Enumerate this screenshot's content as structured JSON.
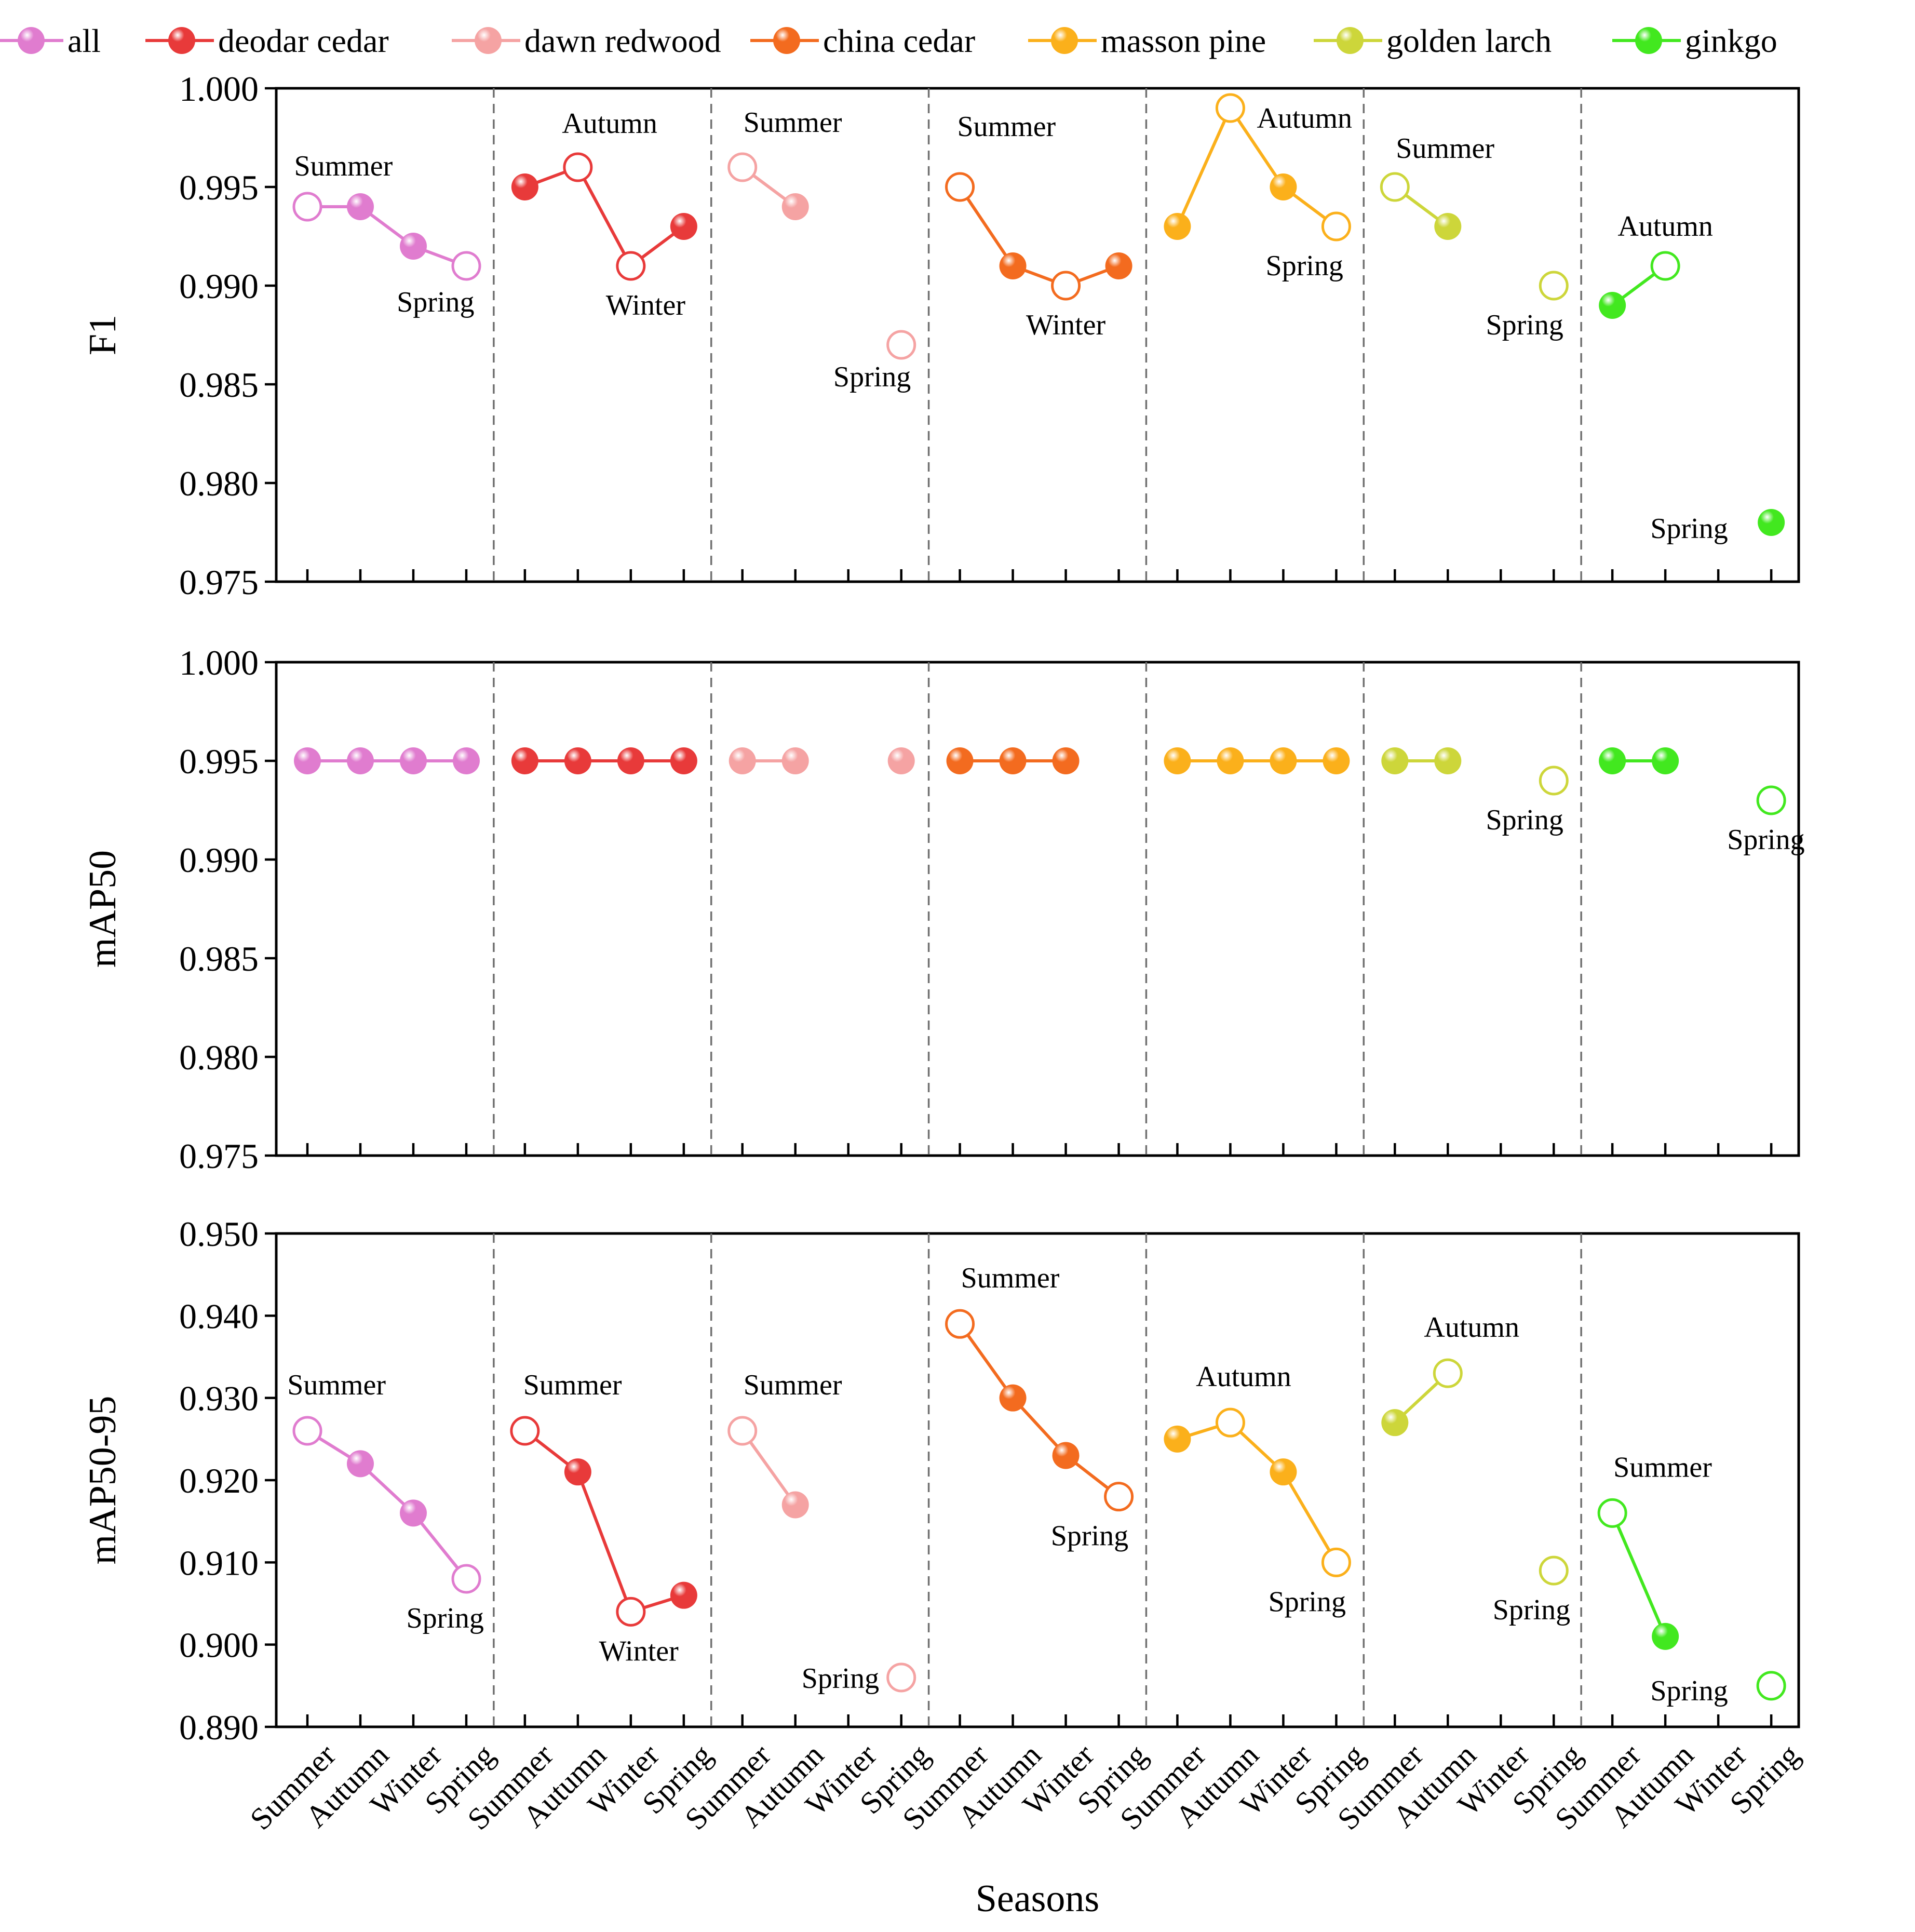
{
  "chart_data": {
    "type": "line",
    "xlabel": "Seasons",
    "season_labels": [
      "Summer",
      "Autumn",
      "Winter",
      "Spring"
    ],
    "legend": [
      {
        "name": "all",
        "color": "#e07ccf"
      },
      {
        "name": "deodar cedar",
        "color": "#e83a3a"
      },
      {
        "name": "dawn redwood",
        "color": "#f5a3a3"
      },
      {
        "name": "china cedar",
        "color": "#f36b1f"
      },
      {
        "name": "masson pine",
        "color": "#fbb01b"
      },
      {
        "name": "golden larch",
        "color": "#cdd63a"
      },
      {
        "name": "ginkgo",
        "color": "#42e81f"
      }
    ],
    "panels": [
      {
        "name": "f1",
        "ylabel": "F1",
        "ylim": [
          0.975,
          1.0
        ],
        "yticks": [
          "0.975",
          "0.980",
          "0.985",
          "0.990",
          "0.995",
          "1.000"
        ],
        "series": [
          {
            "name": "all",
            "values": [
              0.994,
              0.994,
              0.992,
              0.991
            ],
            "hollow": [
              0,
              3
            ]
          },
          {
            "name": "deodar cedar",
            "values": [
              0.995,
              0.996,
              0.991,
              0.993
            ],
            "hollow": [
              1,
              2
            ]
          },
          {
            "name": "dawn redwood",
            "values": [
              0.996,
              0.994,
              null,
              0.987
            ],
            "hollow": [
              0,
              3
            ]
          },
          {
            "name": "china cedar",
            "values": [
              0.995,
              0.991,
              0.99,
              0.991
            ],
            "hollow": [
              0,
              2
            ]
          },
          {
            "name": "masson pine",
            "values": [
              0.993,
              0.999,
              0.995,
              0.993
            ],
            "hollow": [
              1,
              3
            ]
          },
          {
            "name": "golden larch",
            "values": [
              0.995,
              0.993,
              null,
              0.99
            ],
            "hollow": [
              0,
              3
            ]
          },
          {
            "name": "ginkgo",
            "values": [
              0.989,
              0.991,
              null,
              0.978
            ],
            "hollow": [
              1
            ]
          }
        ],
        "annotations": [
          {
            "text": "Summer",
            "group": 0,
            "season": 0,
            "dx": 0.68,
            "dy": -60
          },
          {
            "text": "Spring",
            "group": 0,
            "season": 3,
            "dx": -0.58,
            "dy": 88
          },
          {
            "text": "Autumn",
            "group": 1,
            "season": 1,
            "dx": 0.6,
            "dy": -66
          },
          {
            "text": "Winter",
            "group": 1,
            "season": 2,
            "dx": 0.28,
            "dy": 94
          },
          {
            "text": "Summer",
            "group": 2,
            "season": 0,
            "dx": 0.95,
            "dy": -68
          },
          {
            "text": "Spring",
            "group": 2,
            "season": 3,
            "dx": -0.55,
            "dy": 80
          },
          {
            "text": "Summer",
            "group": 3,
            "season": 0,
            "dx": 0.88,
            "dy": -98
          },
          {
            "text": "Winter",
            "group": 3,
            "season": 2,
            "dx": 0.0,
            "dy": 94
          },
          {
            "text": "Autumn",
            "group": 4,
            "season": 1,
            "dx": 1.4,
            "dy": 38
          },
          {
            "text": "Spring",
            "group": 4,
            "season": 3,
            "dx": -0.6,
            "dy": 94
          },
          {
            "text": "Summer",
            "group": 5,
            "season": 0,
            "dx": 0.95,
            "dy": -56
          },
          {
            "text": "Spring",
            "group": 5,
            "season": 3,
            "dx": -0.55,
            "dy": 94
          },
          {
            "text": "Autumn",
            "group": 6,
            "season": 1,
            "dx": 0.0,
            "dy": -58
          },
          {
            "text": "Spring",
            "group": 6,
            "season": 3,
            "dx": -1.55,
            "dy": 30
          }
        ]
      },
      {
        "name": "map50",
        "ylabel": "mAP50",
        "ylim": [
          0.975,
          1.0
        ],
        "yticks": [
          "0.975",
          "0.980",
          "0.985",
          "0.990",
          "0.995",
          "1.000"
        ],
        "series": [
          {
            "name": "all",
            "values": [
              0.995,
              0.995,
              0.995,
              0.995
            ],
            "hollow": []
          },
          {
            "name": "deodar cedar",
            "values": [
              0.995,
              0.995,
              0.995,
              0.995
            ],
            "hollow": []
          },
          {
            "name": "dawn redwood",
            "values": [
              0.995,
              0.995,
              null,
              0.995
            ],
            "hollow": []
          },
          {
            "name": "china cedar",
            "values": [
              0.995,
              0.995,
              0.995,
              null
            ],
            "hollow": []
          },
          {
            "name": "masson pine",
            "values": [
              0.995,
              0.995,
              0.995,
              0.995
            ],
            "hollow": []
          },
          {
            "name": "golden larch",
            "values": [
              0.995,
              0.995,
              null,
              0.994
            ],
            "hollow": [
              3
            ]
          },
          {
            "name": "ginkgo",
            "values": [
              0.995,
              0.995,
              null,
              0.993
            ],
            "hollow": [
              3
            ]
          }
        ],
        "annotations": [
          {
            "text": "Spring",
            "group": 5,
            "season": 3,
            "dx": -0.55,
            "dy": 94
          },
          {
            "text": "Spring",
            "group": 6,
            "season": 3,
            "dx": -0.1,
            "dy": 94
          }
        ]
      },
      {
        "name": "map50-95",
        "ylabel": "mAP50-95",
        "ylim": [
          0.89,
          0.95
        ],
        "yticks": [
          "0.890",
          "0.900",
          "0.910",
          "0.920",
          "0.930",
          "0.940",
          "0.950"
        ],
        "series": [
          {
            "name": "all",
            "values": [
              0.926,
              0.922,
              0.916,
              0.908
            ],
            "hollow": [
              0,
              3
            ]
          },
          {
            "name": "deodar cedar",
            "values": [
              0.926,
              0.921,
              0.904,
              0.906
            ],
            "hollow": [
              0,
              2
            ]
          },
          {
            "name": "dawn redwood",
            "values": [
              0.926,
              0.917,
              null,
              0.896
            ],
            "hollow": [
              0,
              3
            ]
          },
          {
            "name": "china cedar",
            "values": [
              0.939,
              0.93,
              0.923,
              0.918
            ],
            "hollow": [
              0,
              3
            ]
          },
          {
            "name": "masson pine",
            "values": [
              0.925,
              0.927,
              0.921,
              0.91
            ],
            "hollow": [
              1,
              3
            ]
          },
          {
            "name": "golden larch",
            "values": [
              0.927,
              0.933,
              null,
              0.909
            ],
            "hollow": [
              1,
              3
            ]
          },
          {
            "name": "ginkgo",
            "values": [
              0.916,
              0.901,
              null,
              0.895
            ],
            "hollow": [
              0,
              3
            ]
          }
        ],
        "annotations": [
          {
            "text": "Summer",
            "group": 0,
            "season": 0,
            "dx": 0.55,
            "dy": -70
          },
          {
            "text": "Spring",
            "group": 0,
            "season": 3,
            "dx": -0.4,
            "dy": 94
          },
          {
            "text": "Summer",
            "group": 1,
            "season": 0,
            "dx": 0.9,
            "dy": -70
          },
          {
            "text": "Winter",
            "group": 1,
            "season": 2,
            "dx": 0.15,
            "dy": 94
          },
          {
            "text": "Summer",
            "group": 2,
            "season": 0,
            "dx": 0.95,
            "dy": -70
          },
          {
            "text": "Spring",
            "group": 2,
            "season": 3,
            "dx": -1.15,
            "dy": 20
          },
          {
            "text": "Summer",
            "group": 3,
            "season": 0,
            "dx": 0.95,
            "dy": -70
          },
          {
            "text": "Spring",
            "group": 3,
            "season": 3,
            "dx": -0.55,
            "dy": 94
          },
          {
            "text": "Autumn",
            "group": 4,
            "season": 1,
            "dx": 0.25,
            "dy": -70
          },
          {
            "text": "Spring",
            "group": 4,
            "season": 3,
            "dx": -0.55,
            "dy": 94
          },
          {
            "text": "Autumn",
            "group": 5,
            "season": 1,
            "dx": 0.45,
            "dy": -70
          },
          {
            "text": "Spring",
            "group": 5,
            "season": 3,
            "dx": -0.42,
            "dy": 94
          },
          {
            "text": "Summer",
            "group": 6,
            "season": 0,
            "dx": 0.95,
            "dy": -70
          },
          {
            "text": "Spring",
            "group": 6,
            "season": 3,
            "dx": -1.55,
            "dy": 28
          }
        ]
      }
    ]
  }
}
